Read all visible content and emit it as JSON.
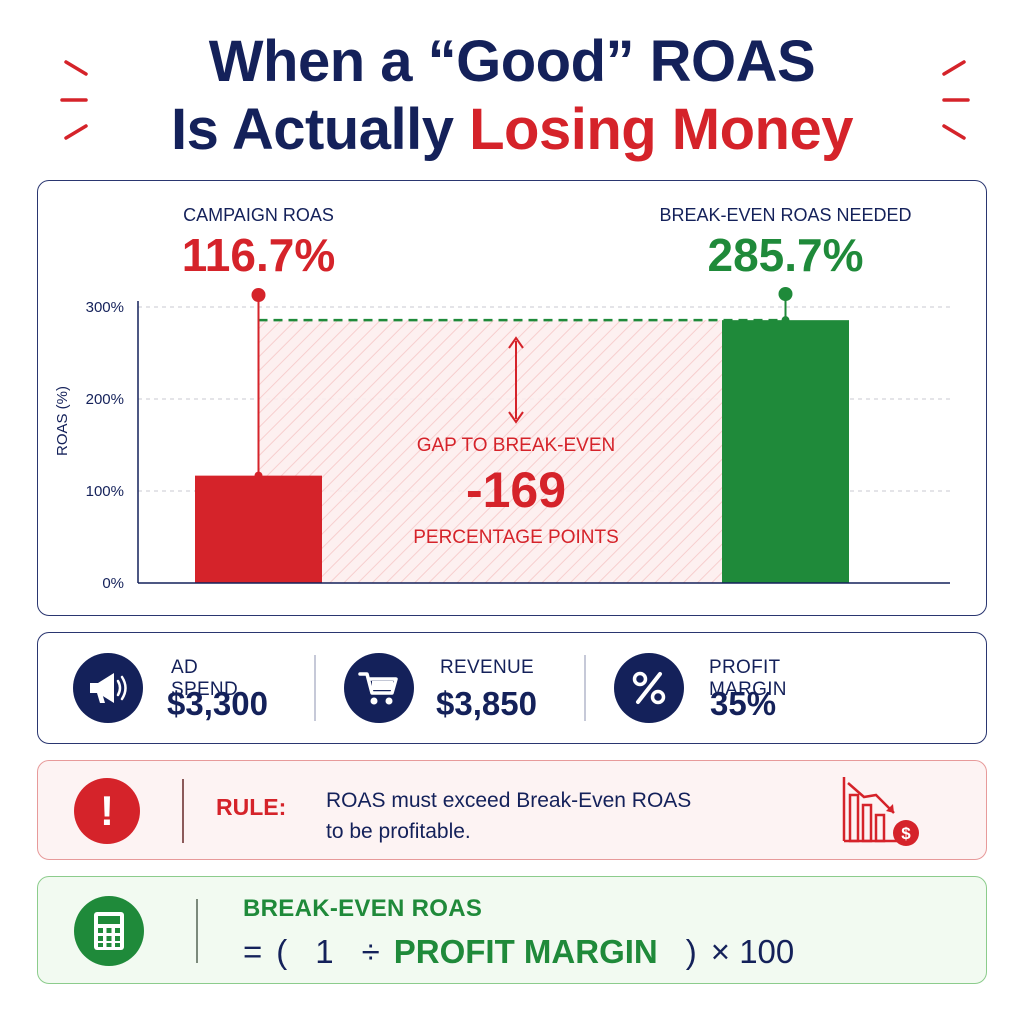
{
  "title": {
    "line1": "When a “Good” ROAS",
    "line2_navy": "Is Actually ",
    "line2_red": "Losing Money"
  },
  "colors": {
    "navy": "#14215a",
    "red": "#d5232a",
    "green": "#1f8a3a"
  },
  "chart_data": {
    "type": "bar",
    "categories": [
      "Campaign ROAS",
      "Break-Even ROAS Needed"
    ],
    "values": [
      116.7,
      285.7
    ],
    "ylabel": "ROAS (%)",
    "ylim": [
      0,
      300
    ],
    "yticks": [
      0,
      100,
      200,
      300
    ],
    "ytick_labels": [
      "0%",
      "100%",
      "200%",
      "300%"
    ],
    "grid": true,
    "bar_colors": [
      "#d5232a",
      "#1f8a3a"
    ],
    "labels": [
      {
        "caption": "CAMPAIGN ROAS",
        "value_text": "116.7%"
      },
      {
        "caption": "BREAK-EVEN ROAS NEEDED",
        "value_text": "285.7%"
      }
    ],
    "gap_annotation": {
      "label": "GAP TO BREAK-EVEN",
      "value": "-169",
      "unit": "PERCENTAGE POINTS"
    }
  },
  "stats": [
    {
      "icon": "megaphone-icon",
      "label": "AD SPEND",
      "value": "$3,300"
    },
    {
      "icon": "cart-icon",
      "label": "REVENUE",
      "value": "$3,850"
    },
    {
      "icon": "percent-icon",
      "label": "PROFIT MARGIN",
      "value": "35%"
    }
  ],
  "rule": {
    "icon": "exclamation-icon",
    "label": "RULE:",
    "line1": "ROAS must exceed Break-Even ROAS",
    "line2": "to be profitable.",
    "side_icon": "declining-chart-dollar-icon"
  },
  "formula": {
    "icon": "calculator-icon",
    "title": "BREAK-EVEN ROAS",
    "eq": "=",
    "open": "(",
    "one": "1",
    "div": "÷",
    "term": "PROFIT MARGIN",
    "close": ")",
    "times": "× 100"
  }
}
